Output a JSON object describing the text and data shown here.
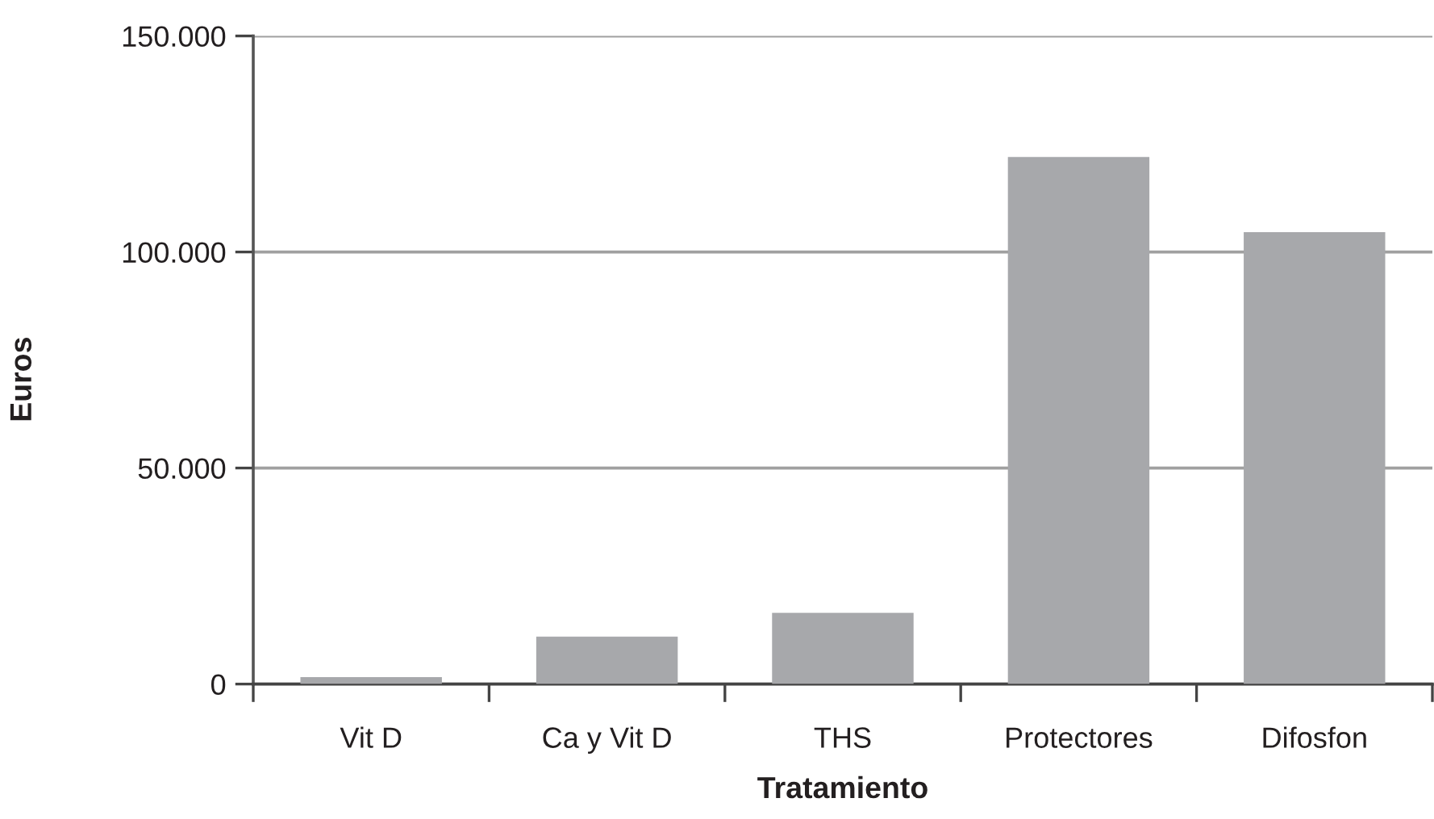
{
  "chart_data": {
    "type": "bar",
    "categories": [
      "Vit D",
      "Ca y Vit D",
      "THS",
      "Protectores",
      "Difosfon"
    ],
    "values": [
      1600,
      11000,
      16500,
      122000,
      104600
    ],
    "color": "#a7a8ab",
    "xlabel": "Tratamiento",
    "ylabel": "Euros",
    "ylim": [
      0,
      150000
    ],
    "yticks": [
      0,
      {
        "value": 50000,
        "label": "50.000"
      },
      {
        "value": 100000,
        "label": "100.000"
      },
      {
        "value": 150000,
        "label": "150.000"
      }
    ],
    "grid": "y"
  }
}
